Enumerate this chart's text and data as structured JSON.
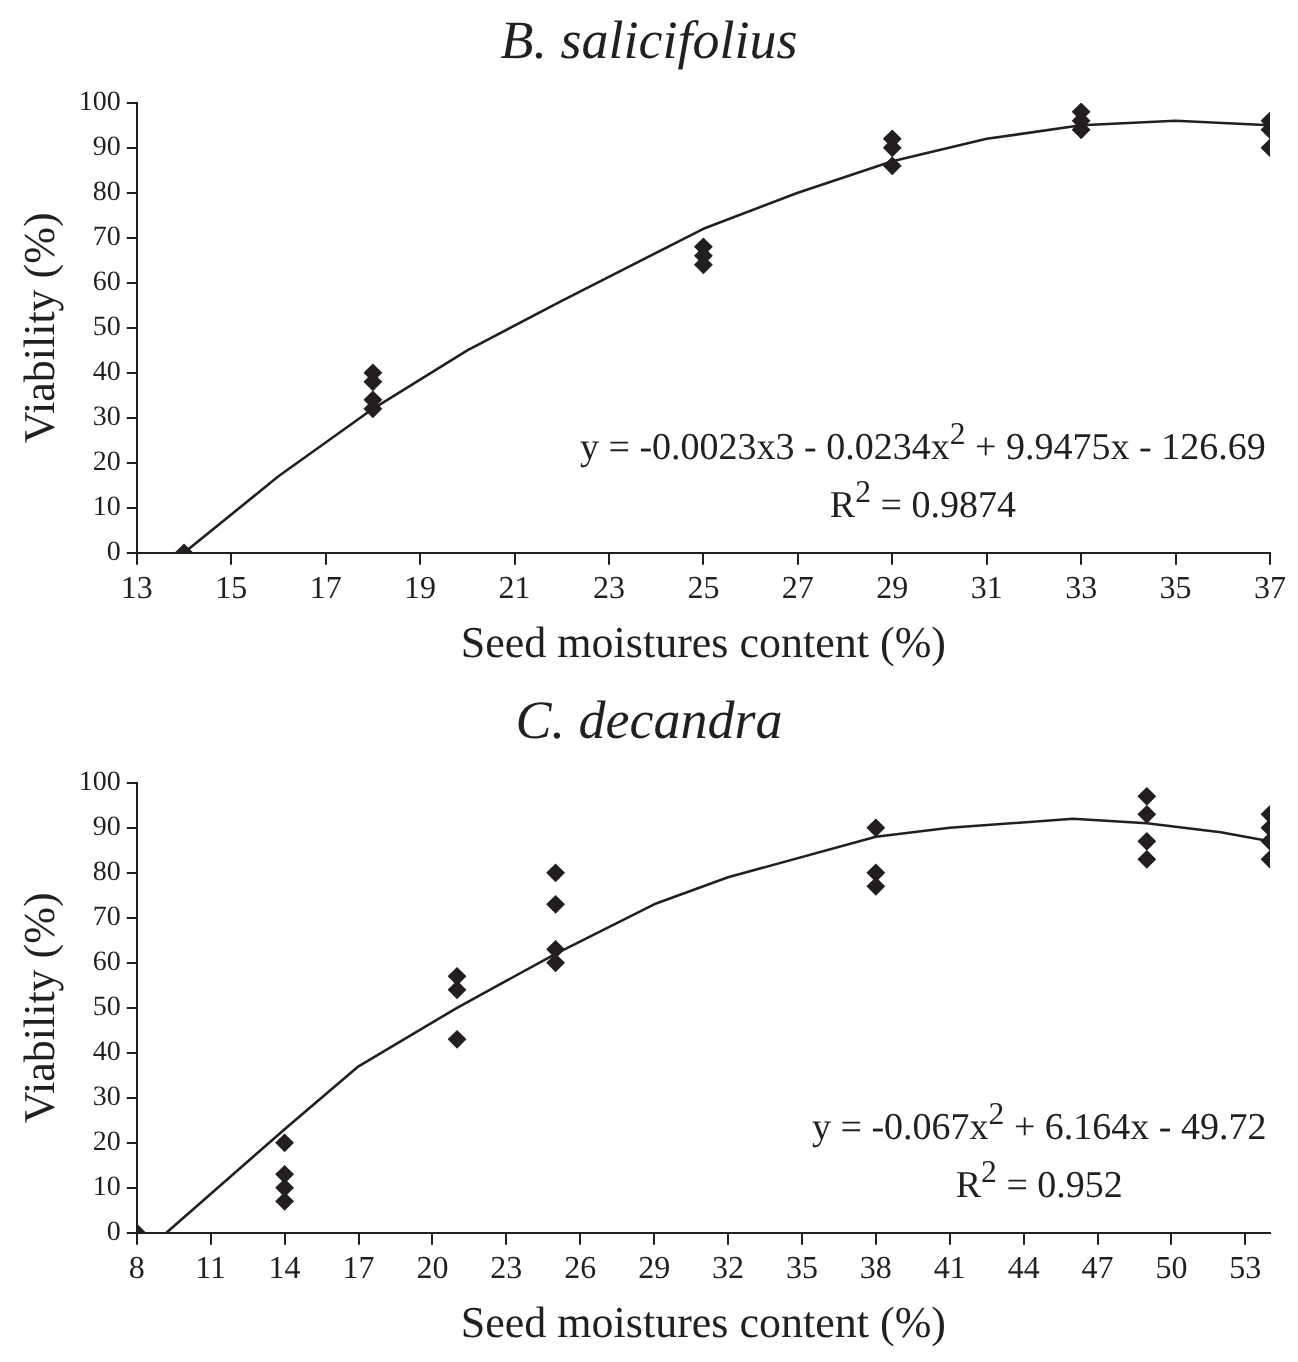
{
  "chart_data": [
    {
      "type": "scatter",
      "title": "B. salicifolius",
      "xlabel": "Seed moistures content (%)",
      "ylabel": "Viability (%)",
      "xlim": [
        13,
        37
      ],
      "xticks": [
        13,
        15,
        17,
        19,
        21,
        23,
        25,
        27,
        29,
        31,
        33,
        35,
        37
      ],
      "ylim": [
        0,
        100
      ],
      "yticks": [
        0,
        10,
        20,
        30,
        40,
        50,
        60,
        70,
        80,
        90,
        100
      ],
      "grid": false,
      "legend": false,
      "marker": "diamond",
      "annotations": [
        "y = -0.0023x3 - 0.0234x$^{2}$ + 9.9475x - 126.69",
        "R$^{2}$ = 0.9874"
      ],
      "series": [
        {
          "color": "#231f20",
          "x": [
            14,
            18,
            18,
            18,
            18,
            25,
            25,
            25,
            29,
            29,
            29,
            33,
            33,
            33,
            37,
            37,
            37
          ],
          "values": [
            0,
            40,
            38,
            34,
            32,
            68,
            66,
            64,
            92,
            90,
            86,
            98,
            96,
            94,
            96,
            94,
            90
          ]
        },
        {
          "type": "line",
          "marker": "none",
          "color": "#231f20",
          "x": [
            14,
            16,
            18,
            20,
            22,
            25,
            27,
            29,
            31,
            33,
            35,
            37
          ],
          "values": [
            0,
            17,
            32,
            45,
            56,
            72,
            80,
            87,
            92,
            95,
            96,
            95
          ]
        }
      ]
    },
    {
      "type": "scatter",
      "title": "C. decandra",
      "xlabel": "Seed moistures content (%)",
      "ylabel": "Viability (%)",
      "xlim": [
        8,
        54
      ],
      "xticks": [
        8,
        11,
        14,
        17,
        20,
        23,
        26,
        29,
        32,
        35,
        38,
        41,
        44,
        47,
        50,
        53
      ],
      "ylim": [
        0,
        100
      ],
      "yticks": [
        0,
        10,
        20,
        30,
        40,
        50,
        60,
        70,
        80,
        90,
        100
      ],
      "grid": false,
      "legend": false,
      "marker": "diamond",
      "annotations": [
        "y = -0.067x$^{2}$ + 6.164x - 49.72",
        "R$^{2}$ = 0.952"
      ],
      "series": [
        {
          "color": "#231f20",
          "x": [
            8,
            14,
            14,
            14,
            14,
            21,
            21,
            21,
            25,
            25,
            25,
            25,
            38,
            38,
            38,
            49,
            49,
            49,
            49,
            54,
            54,
            54,
            54
          ],
          "values": [
            0,
            20,
            13,
            10,
            7,
            57,
            54,
            43,
            80,
            73,
            63,
            60,
            90,
            80,
            77,
            97,
            93,
            87,
            83,
            93,
            90,
            87,
            83
          ]
        },
        {
          "type": "line",
          "marker": "none",
          "color": "#231f20",
          "x": [
            9.2,
            14,
            17,
            21,
            25,
            29,
            32,
            38,
            41,
            46,
            49,
            52,
            54
          ],
          "values": [
            0,
            23,
            37,
            50,
            62,
            73,
            79,
            88,
            90,
            92,
            91,
            89,
            87
          ]
        }
      ]
    }
  ]
}
